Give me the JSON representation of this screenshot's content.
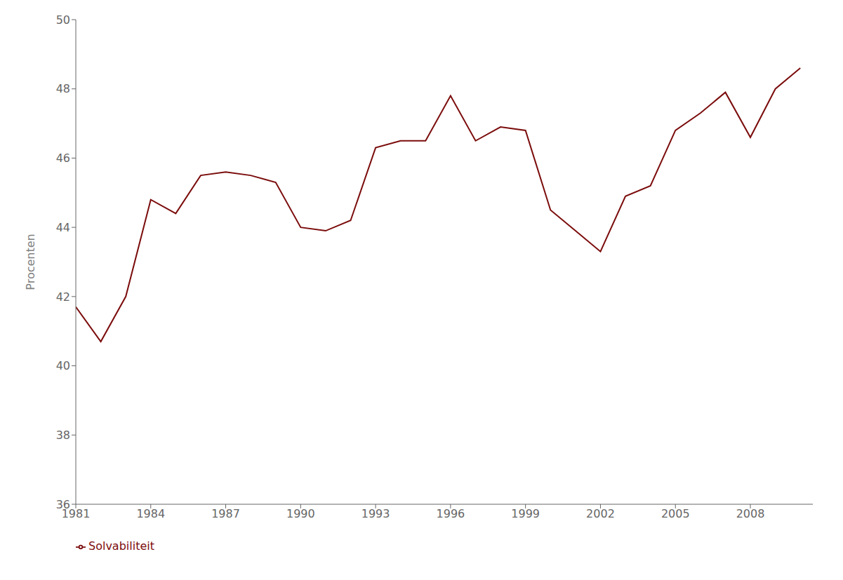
{
  "chart_data": {
    "type": "line",
    "x": [
      1981,
      1982,
      1983,
      1984,
      1985,
      1986,
      1987,
      1988,
      1989,
      1990,
      1991,
      1992,
      1993,
      1994,
      1995,
      1996,
      1997,
      1998,
      1999,
      2000,
      2001,
      2002,
      2003,
      2004,
      2005,
      2006,
      2007,
      2008,
      2009,
      2010
    ],
    "series": [
      {
        "name": "Solvabiliteit",
        "color": "#7b0c0c",
        "values": [
          41.7,
          40.7,
          42.0,
          44.8,
          44.4,
          45.5,
          45.6,
          45.5,
          45.3,
          44.0,
          43.9,
          44.2,
          46.3,
          46.5,
          46.5,
          47.8,
          46.5,
          46.9,
          46.8,
          44.5,
          43.9,
          43.3,
          44.9,
          45.2,
          46.8,
          47.3,
          47.9,
          46.6,
          48.0,
          48.6
        ]
      }
    ],
    "ylabel": "Procenten",
    "xlim": [
      1981,
      2010.5
    ],
    "xticks": [
      1981,
      1984,
      1987,
      1990,
      1993,
      1996,
      1999,
      2002,
      2005,
      2008
    ],
    "ylim": [
      36,
      50
    ],
    "yticks": [
      36,
      38,
      40,
      42,
      44,
      46,
      48,
      50
    ],
    "grid": false,
    "legend": "lower left"
  }
}
